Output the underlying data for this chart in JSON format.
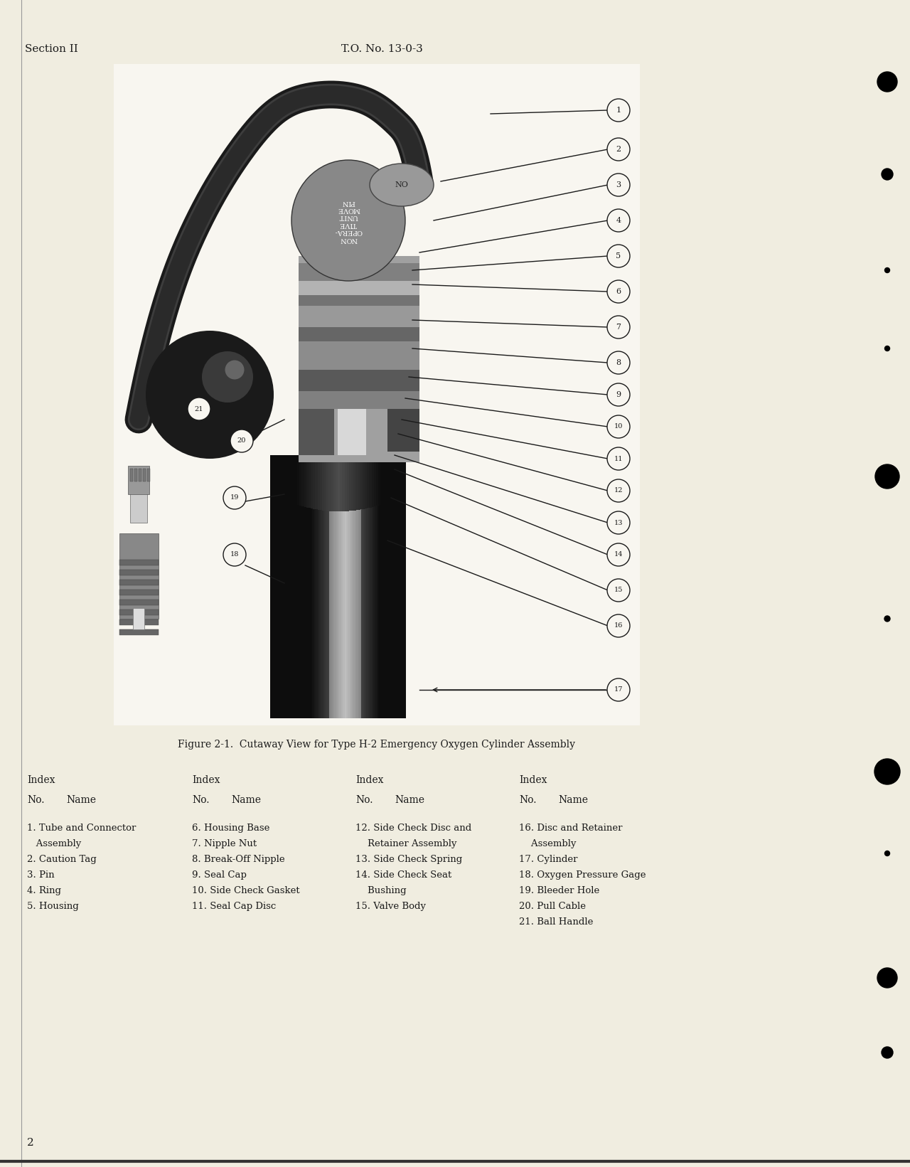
{
  "background_color": "#f0ede0",
  "text_color": "#1a1a1a",
  "header_left": "Section II",
  "header_center": "T.O. No. 13-0-3",
  "figure_caption": "Figure 2-1.  Cutaway View for Type H-2 Emergency Oxygen Cylinder Assembly",
  "page_number": "2",
  "items_col1": [
    "1. Tube and Connector",
    "   Assembly",
    "2. Caution Tag",
    "3. Pin",
    "4. Ring",
    "5. Housing"
  ],
  "items_col2": [
    "6. Housing Base",
    "7. Nipple Nut",
    "8. Break-Off Nipple",
    "9. Seal Cap",
    "10. Side Check Gasket",
    "11. Seal Cap Disc"
  ],
  "items_col3": [
    "12. Side Check Disc and",
    "    Retainer Assembly",
    "13. Side Check Spring",
    "14. Side Check Seat",
    "    Bushing",
    "15. Valve Body"
  ],
  "items_col4": [
    "16. Disc and Retainer",
    "    Assembly",
    "17. Cylinder",
    "18. Oxygen Pressure Gage",
    "19. Bleeder Hole",
    "20. Pull Cable",
    "21. Ball Handle"
  ]
}
